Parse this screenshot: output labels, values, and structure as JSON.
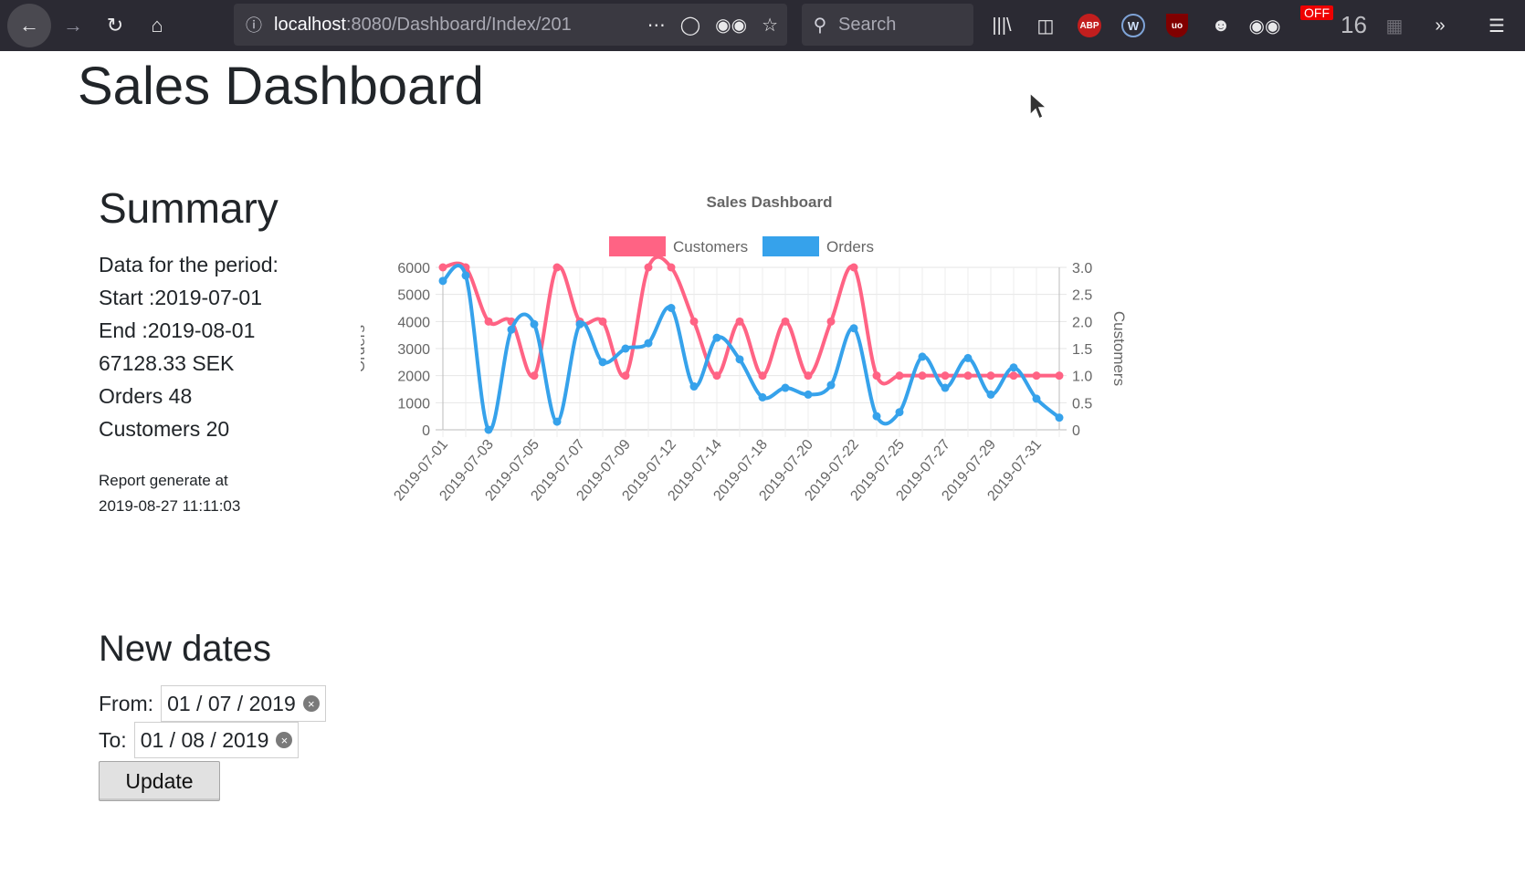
{
  "browser": {
    "url_host": "localhost",
    "url_path": ":8080/Dashboard/Index/201",
    "search_placeholder": "Search",
    "off_badge": "OFF",
    "count_badge": "16"
  },
  "page": {
    "title": "Sales Dashboard"
  },
  "summary": {
    "heading": "Summary",
    "period_label": "Data for the period:",
    "start": "Start :2019-07-01",
    "end": "End :2019-08-01",
    "revenue": "67128.33 SEK",
    "orders": "Orders 48",
    "customers": "Customers 20",
    "report_line1": "Report generate at",
    "report_line2": "2019-08-27 11:11:03"
  },
  "form": {
    "heading": "New dates",
    "from_label": "From:",
    "from_value": "01 / 07 / 2019",
    "to_label": "To:",
    "to_value": "01 / 08 / 2019",
    "update_label": "Update"
  },
  "colors": {
    "customers": "#ff6384",
    "orders": "#36a2eb"
  },
  "chart_data": {
    "type": "line",
    "title": "Sales Dashboard",
    "x": [
      "2019-07-01",
      "2019-07-02",
      "2019-07-03",
      "2019-07-04",
      "2019-07-05",
      "2019-07-06",
      "2019-07-07",
      "2019-07-08",
      "2019-07-09",
      "2019-07-10",
      "2019-07-12",
      "2019-07-13",
      "2019-07-14",
      "2019-07-15",
      "2019-07-18",
      "2019-07-19",
      "2019-07-20",
      "2019-07-21",
      "2019-07-22",
      "2019-07-24",
      "2019-07-25",
      "2019-07-26",
      "2019-07-27",
      "2019-07-28",
      "2019-07-29",
      "2019-07-30",
      "2019-07-31",
      "2019-08-01"
    ],
    "x_tick_labels": [
      "2019-07-01",
      "2019-07-03",
      "2019-07-05",
      "2019-07-07",
      "2019-07-09",
      "2019-07-12",
      "2019-07-14",
      "2019-07-18",
      "2019-07-20",
      "2019-07-22",
      "2019-07-25",
      "2019-07-27",
      "2019-07-29",
      "2019-07-31"
    ],
    "series": [
      {
        "name": "Customers",
        "axis": "right",
        "values": [
          3,
          3,
          2,
          2,
          1,
          3,
          2,
          2,
          1,
          3,
          3,
          2,
          1,
          2,
          1,
          2,
          1,
          2,
          3,
          1,
          1,
          1,
          1,
          1,
          1,
          1,
          1,
          1
        ]
      },
      {
        "name": "Orders",
        "axis": "left",
        "values": [
          5500,
          5700,
          0,
          3700,
          3900,
          300,
          3900,
          2500,
          3000,
          3200,
          4500,
          1600,
          3400,
          2600,
          1200,
          1550,
          1300,
          1650,
          3750,
          500,
          650,
          2700,
          1550,
          2650,
          1300,
          2300,
          1150,
          450
        ]
      }
    ],
    "y_left": {
      "label": "Orders",
      "lim": [
        0,
        6000
      ],
      "ticks": [
        "0",
        "1000",
        "2000",
        "3000",
        "4000",
        "5000",
        "6000"
      ]
    },
    "y_right": {
      "label": "Customers",
      "lim": [
        0,
        3
      ],
      "ticks": [
        "0",
        "0.5",
        "1.0",
        "1.5",
        "2.0",
        "2.5",
        "3.0"
      ]
    },
    "legend": "top",
    "grid": true
  }
}
